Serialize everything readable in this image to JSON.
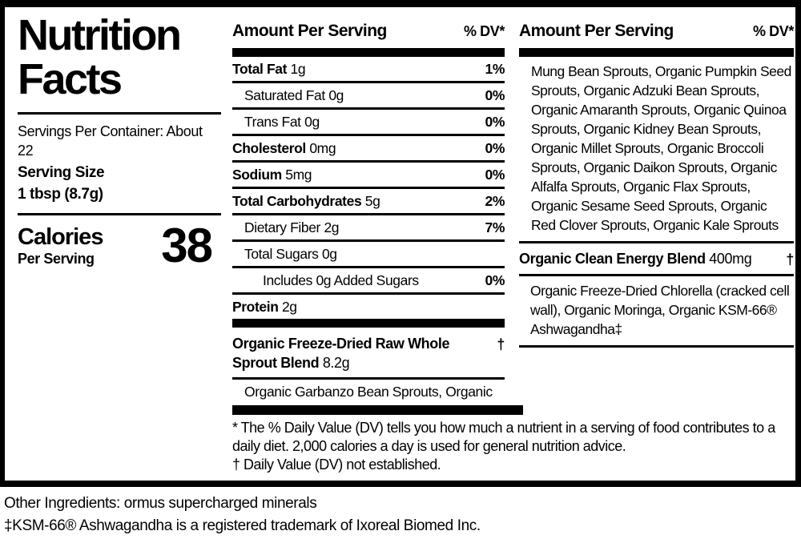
{
  "left": {
    "title_line1": "Nutrition",
    "title_line2": "Facts",
    "servings_per_container": "Servings Per Container: About 22",
    "serving_size_label": "Serving Size",
    "serving_size_value": "1 tbsp (8.7g)",
    "calories_label": "Calories",
    "calories_sublabel": "Per Serving",
    "calories_value": "38"
  },
  "middle": {
    "header": "Amount Per Serving",
    "dv_header": "% DV*",
    "rows": [
      {
        "name": "Total Fat",
        "value": "1g",
        "dv": "1%"
      },
      {
        "name": "Saturated Fat",
        "value": "0g",
        "dv": "0%"
      },
      {
        "name": "Trans Fat",
        "value": "0g",
        "dv": "0%"
      },
      {
        "name": "Cholesterol",
        "value": "0mg",
        "dv": "0%"
      },
      {
        "name": "Sodium",
        "value": "5mg",
        "dv": "0%"
      },
      {
        "name": "Total Carbohydrates",
        "value": "5g",
        "dv": "2%"
      },
      {
        "name": "Dietary Fiber",
        "value": "2g",
        "dv": "7%"
      },
      {
        "name": "Total Sugars",
        "value": "0g",
        "dv": ""
      },
      {
        "name": "Includes 0g Added Sugars",
        "value": "",
        "dv": "0%"
      },
      {
        "name": "Protein",
        "value": "2g",
        "dv": ""
      }
    ],
    "blend": {
      "name": "Organic Freeze-Dried Raw Whole Sprout Blend",
      "value": "8.2g",
      "dv": "†"
    },
    "blend_ingredients": "Organic Garbanzo Bean Sprouts, Organic"
  },
  "right": {
    "header": "Amount Per Serving",
    "dv_header": "% DV*",
    "sprout_ingredients": "Mung Bean Sprouts, Organic Pumpkin Seed Sprouts, Organic Adzuki Bean Sprouts, Organic Amaranth Sprouts, Organic Quinoa Sprouts, Organic Kidney Bean Sprouts, Organic Millet Sprouts, Organic Broccoli Sprouts, Organic Daikon Sprouts, Organic Alfalfa Sprouts, Organic Flax Sprouts, Organic Sesame Seed Sprouts, Organic Red Clover Sprouts, Organic Kale Sprouts",
    "energy_blend": {
      "name": "Organic Clean Energy Blend",
      "value": "400mg",
      "dv": "†"
    },
    "energy_ingredients": "Organic Freeze-Dried Chlorella (cracked cell wall), Organic Moringa, Organic KSM-66® Ashwagandha‡"
  },
  "footnotes": {
    "dv_note": "* The % Daily Value (DV) tells you how much a nutrient in a serving of food contributes to a daily diet. 2,000 calories a day is used for general nutrition advice.",
    "dagger_note": "† Daily Value (DV) not established."
  },
  "bottom": {
    "other_ingredients": "Other Ingredients: ormus supercharged minerals",
    "trademark_note": "‡KSM-66® Ashwagandha is a registered trademark of Ixoreal Biomed Inc."
  },
  "colors": {
    "ink": "#000000",
    "background": "#ffffff"
  }
}
